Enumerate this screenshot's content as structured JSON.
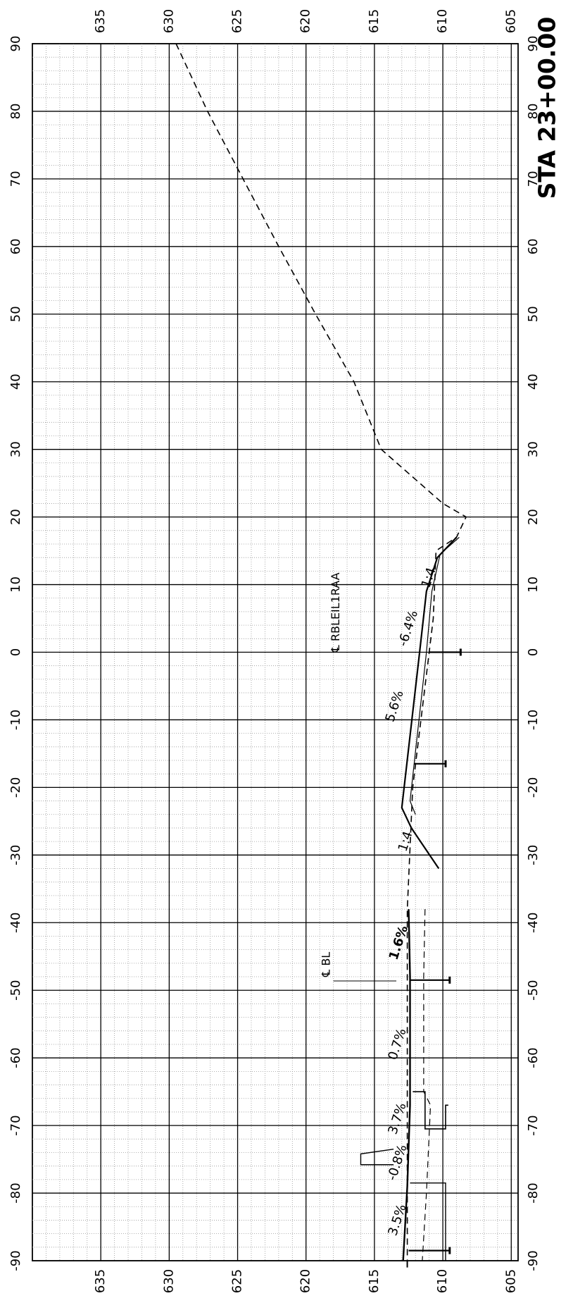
{
  "station": "STA 23+00.00",
  "chart_data": {
    "type": "cross-section",
    "offset_ticks": [
      90,
      80,
      70,
      60,
      50,
      40,
      30,
      20,
      10,
      0,
      -10,
      -20,
      -30,
      -40,
      -50,
      -60,
      -70,
      -80,
      -90
    ],
    "elevation_ticks": [
      635,
      630,
      625,
      620,
      615,
      610,
      605
    ],
    "offset_range": [
      -90,
      90
    ],
    "elevation_range": [
      604.5,
      640
    ],
    "grid": true,
    "existing_ground": [
      {
        "offset": 90,
        "elev": 629.5
      },
      {
        "offset": 80,
        "elev": 627.2
      },
      {
        "offset": 70,
        "elev": 624.6
      },
      {
        "offset": 60,
        "elev": 622.0
      },
      {
        "offset": 50,
        "elev": 619.3
      },
      {
        "offset": 40,
        "elev": 616.5
      },
      {
        "offset": 30,
        "elev": 614.5
      },
      {
        "offset": 22,
        "elev": 610.0
      },
      {
        "offset": 20,
        "elev": 608.3
      },
      {
        "offset": 17,
        "elev": 609.0
      },
      {
        "offset": 15,
        "elev": 610.5
      },
      {
        "offset": 5,
        "elev": 610.7
      },
      {
        "offset": 0,
        "elev": 611.0
      },
      {
        "offset": -10,
        "elev": 611.6
      },
      {
        "offset": -20,
        "elev": 612.2
      },
      {
        "offset": -38,
        "elev": 612.6
      },
      {
        "offset": -60,
        "elev": 612.6
      },
      {
        "offset": -90,
        "elev": 612.6
      }
    ],
    "proposed_surface": [
      {
        "offset": 17,
        "elev": 609.0
      },
      {
        "offset": 14,
        "elev": 610.4
      },
      {
        "offset": 9,
        "elev": 611.2
      },
      {
        "offset": 0,
        "elev": 611.7
      },
      {
        "offset": -23,
        "elev": 613.0
      },
      {
        "offset": -26,
        "elev": 612.3
      },
      {
        "offset": -32,
        "elev": 610.3
      }
    ],
    "slope_labels": [
      {
        "text": "1:4",
        "offset": 11,
        "elev": 611.0
      },
      {
        "text": "-6.4%",
        "offset": 3.5,
        "elev": 612.5
      },
      {
        "text": "5.6%",
        "offset": -8,
        "elev": 613.5
      },
      {
        "text": "1:4",
        "offset": -28,
        "elev": 612.7
      },
      {
        "text": "1.6%",
        "offset": -43,
        "elev": 613.2
      },
      {
        "text": "0.7%",
        "offset": -58,
        "elev": 613.3
      },
      {
        "text": "3.7%",
        "offset": -69,
        "elev": 613.3
      },
      {
        "text": "-0.8%",
        "offset": -75.5,
        "elev": 613.3
      },
      {
        "text": "3.5%",
        "offset": -84,
        "elev": 613.3
      }
    ],
    "centerline_labels": [
      {
        "text": "℄ RBLEIL1RAA",
        "offset": 0,
        "elev": 617.8
      },
      {
        "text": "℄ BL",
        "offset": -48,
        "elev": 618.5
      }
    ]
  }
}
